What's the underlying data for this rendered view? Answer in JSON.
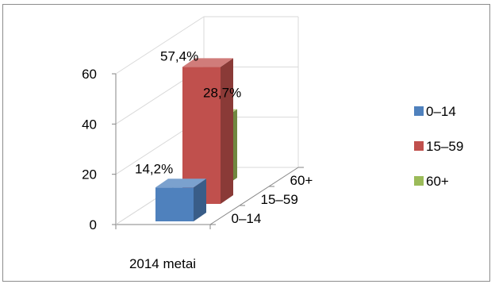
{
  "chart_data": {
    "type": "bar",
    "variant": "3d-column-depth",
    "categories": [
      "2014 metai"
    ],
    "series": [
      {
        "name": "0–14",
        "value": 14.2,
        "label": "14,2%",
        "color": "#4f81bd"
      },
      {
        "name": "15–59",
        "value": 57.4,
        "label": "57,4%",
        "color": "#c0504d"
      },
      {
        "name": "60+",
        "value": 28.7,
        "label": "28,7%",
        "color": "#9bbb59"
      }
    ],
    "yticks": [
      "0",
      "20",
      "40",
      "60"
    ],
    "ytick_values": [
      0,
      20,
      40,
      60
    ],
    "depth_labels": [
      "0–14",
      "15–59",
      "60+"
    ],
    "ylim": [
      0,
      60
    ],
    "grid": true,
    "legend_position": "right"
  }
}
